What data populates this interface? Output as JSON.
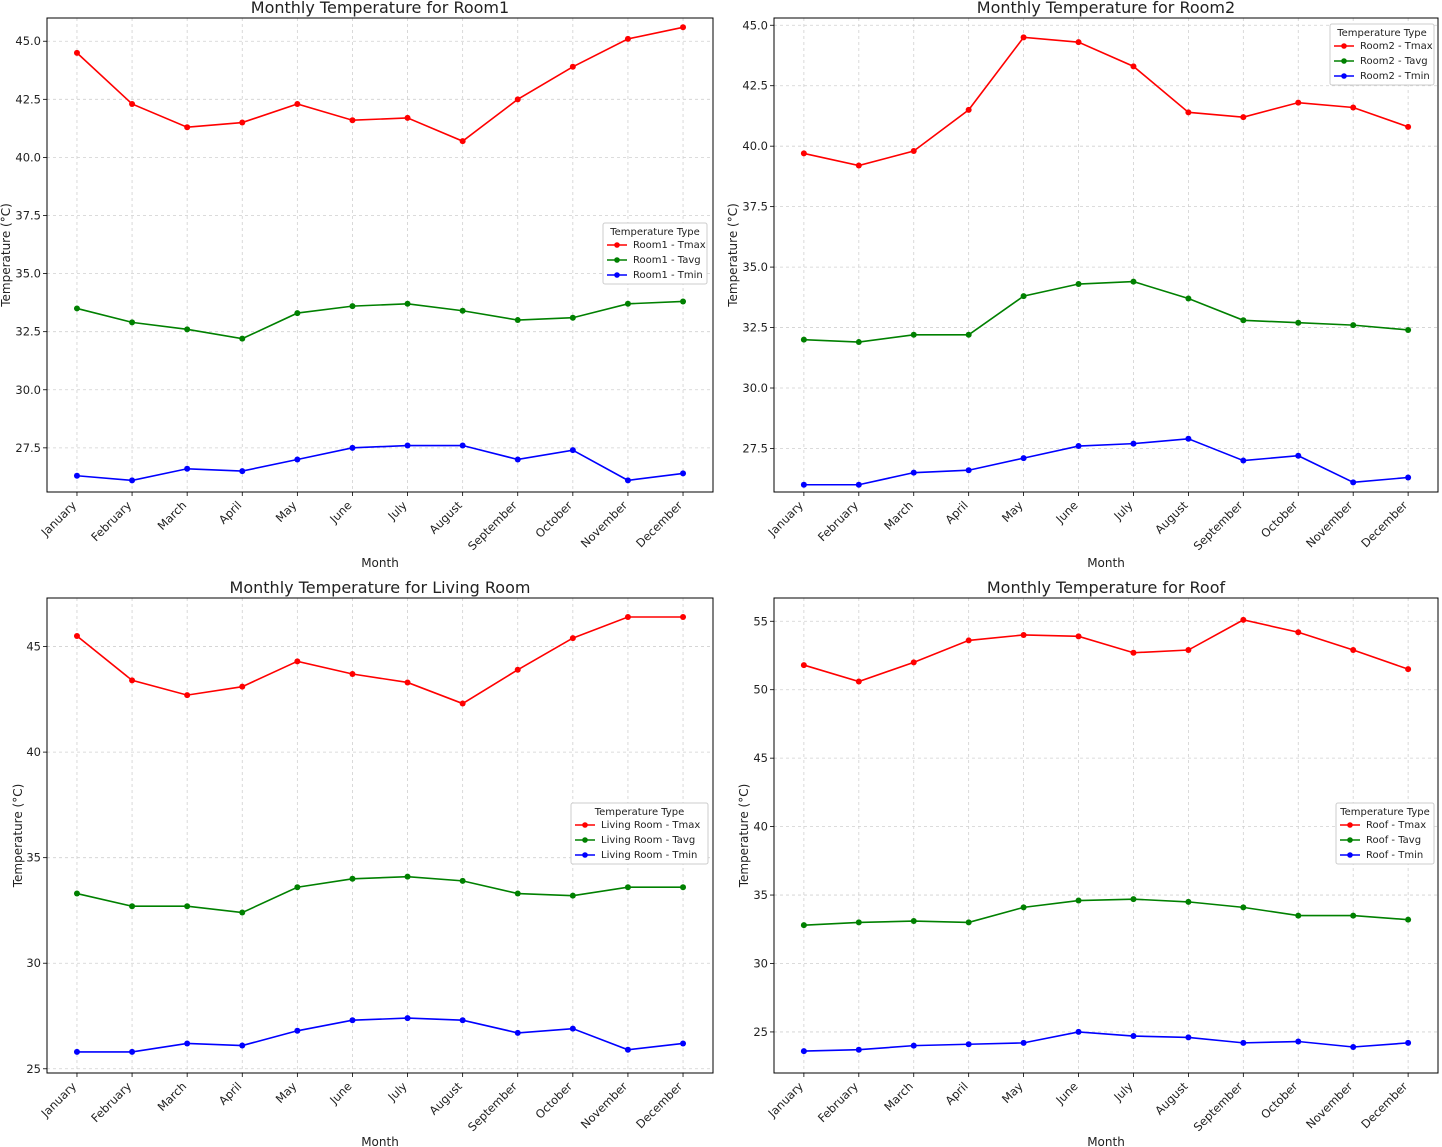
{
  "chart_data": [
    {
      "type": "line",
      "title": "Monthly Temperature for Room1",
      "xlabel": "Month",
      "ylabel": "Temperature (°C)",
      "categories": [
        "January",
        "February",
        "March",
        "April",
        "May",
        "June",
        "July",
        "August",
        "September",
        "October",
        "November",
        "December"
      ],
      "ylim": [
        25.6,
        46.0
      ],
      "yticks": [
        "27.5",
        "30.0",
        "32.5",
        "35.0",
        "37.5",
        "40.0",
        "42.5",
        "45.0"
      ],
      "grid": true,
      "legend": {
        "title": "Temperature Type",
        "placement": "center-right"
      },
      "series": [
        {
          "name": "Room1 - Tmax",
          "color": "#ff0000",
          "values": [
            44.5,
            42.3,
            41.3,
            41.5,
            42.3,
            41.6,
            41.7,
            40.7,
            42.5,
            43.9,
            45.1,
            45.6
          ]
        },
        {
          "name": "Room1 - Tavg",
          "color": "#008000",
          "values": [
            33.5,
            32.9,
            32.6,
            32.2,
            33.3,
            33.6,
            33.7,
            33.4,
            33.0,
            33.1,
            33.7,
            33.8
          ]
        },
        {
          "name": "Room1 - Tmin",
          "color": "#0000ff",
          "values": [
            26.3,
            26.1,
            26.6,
            26.5,
            27.0,
            27.5,
            27.6,
            27.6,
            27.0,
            27.4,
            26.1,
            26.4
          ]
        }
      ]
    },
    {
      "type": "line",
      "title": "Monthly Temperature for Room2",
      "xlabel": "Month",
      "ylabel": "Temperature (°C)",
      "categories": [
        "January",
        "February",
        "March",
        "April",
        "May",
        "June",
        "July",
        "August",
        "September",
        "October",
        "November",
        "December"
      ],
      "ylim": [
        25.7,
        45.3
      ],
      "yticks": [
        "27.5",
        "30.0",
        "32.5",
        "35.0",
        "37.5",
        "40.0",
        "42.5",
        "45.0"
      ],
      "grid": true,
      "legend": {
        "title": "Temperature Type",
        "placement": "top-right"
      },
      "series": [
        {
          "name": "Room2 - Tmax",
          "color": "#ff0000",
          "values": [
            39.7,
            39.2,
            39.8,
            41.5,
            44.5,
            44.3,
            43.3,
            41.4,
            41.2,
            41.8,
            41.6,
            40.8
          ]
        },
        {
          "name": "Room2 - Tavg",
          "color": "#008000",
          "values": [
            32.0,
            31.9,
            32.2,
            32.2,
            33.8,
            34.3,
            34.4,
            33.7,
            32.8,
            32.7,
            32.6,
            32.4
          ]
        },
        {
          "name": "Room2 - Tmin",
          "color": "#0000ff",
          "values": [
            26.0,
            26.0,
            26.5,
            26.6,
            27.1,
            27.6,
            27.7,
            27.9,
            27.0,
            27.2,
            26.1,
            26.3
          ]
        }
      ]
    },
    {
      "type": "line",
      "title": "Monthly Temperature for Living Room",
      "xlabel": "Month",
      "ylabel": "Temperature (°C)",
      "categories": [
        "January",
        "February",
        "March",
        "April",
        "May",
        "June",
        "July",
        "August",
        "September",
        "October",
        "November",
        "December"
      ],
      "ylim": [
        24.8,
        47.3
      ],
      "yticks": [
        "25",
        "30",
        "35",
        "40",
        "45"
      ],
      "grid": true,
      "legend": {
        "title": "Temperature Type",
        "placement": "center-right"
      },
      "series": [
        {
          "name": "Living Room - Tmax",
          "color": "#ff0000",
          "values": [
            45.5,
            43.4,
            42.7,
            43.1,
            44.3,
            43.7,
            43.3,
            42.3,
            43.9,
            45.4,
            46.4,
            46.4
          ]
        },
        {
          "name": "Living Room - Tavg",
          "color": "#008000",
          "values": [
            33.3,
            32.7,
            32.7,
            32.4,
            33.6,
            34.0,
            34.1,
            33.9,
            33.3,
            33.2,
            33.6,
            33.6
          ]
        },
        {
          "name": "Living Room - Tmin",
          "color": "#0000ff",
          "values": [
            25.8,
            25.8,
            26.2,
            26.1,
            26.8,
            27.3,
            27.4,
            27.3,
            26.7,
            26.9,
            25.9,
            26.2
          ]
        }
      ]
    },
    {
      "type": "line",
      "title": "Monthly Temperature for Roof",
      "xlabel": "Month",
      "ylabel": "Temperature (°C)",
      "categories": [
        "January",
        "February",
        "March",
        "April",
        "May",
        "June",
        "July",
        "August",
        "September",
        "October",
        "November",
        "December"
      ],
      "ylim": [
        22.0,
        56.7
      ],
      "yticks": [
        "25",
        "30",
        "35",
        "40",
        "45",
        "50",
        "55"
      ],
      "grid": true,
      "legend": {
        "title": "Temperature Type",
        "placement": "center-right"
      },
      "series": [
        {
          "name": "Roof - Tmax",
          "color": "#ff0000",
          "values": [
            51.8,
            50.6,
            52.0,
            53.6,
            54.0,
            53.9,
            52.7,
            52.9,
            55.1,
            54.2,
            52.9,
            51.5
          ]
        },
        {
          "name": "Roof - Tavg",
          "color": "#008000",
          "values": [
            32.8,
            33.0,
            33.1,
            33.0,
            34.1,
            34.6,
            34.7,
            34.5,
            34.1,
            33.5,
            33.5,
            33.2
          ]
        },
        {
          "name": "Roof - Tmin",
          "color": "#0000ff",
          "values": [
            23.6,
            23.7,
            24.0,
            24.1,
            24.2,
            25.0,
            24.7,
            24.6,
            24.2,
            24.3,
            23.9,
            24.2
          ]
        }
      ]
    }
  ]
}
